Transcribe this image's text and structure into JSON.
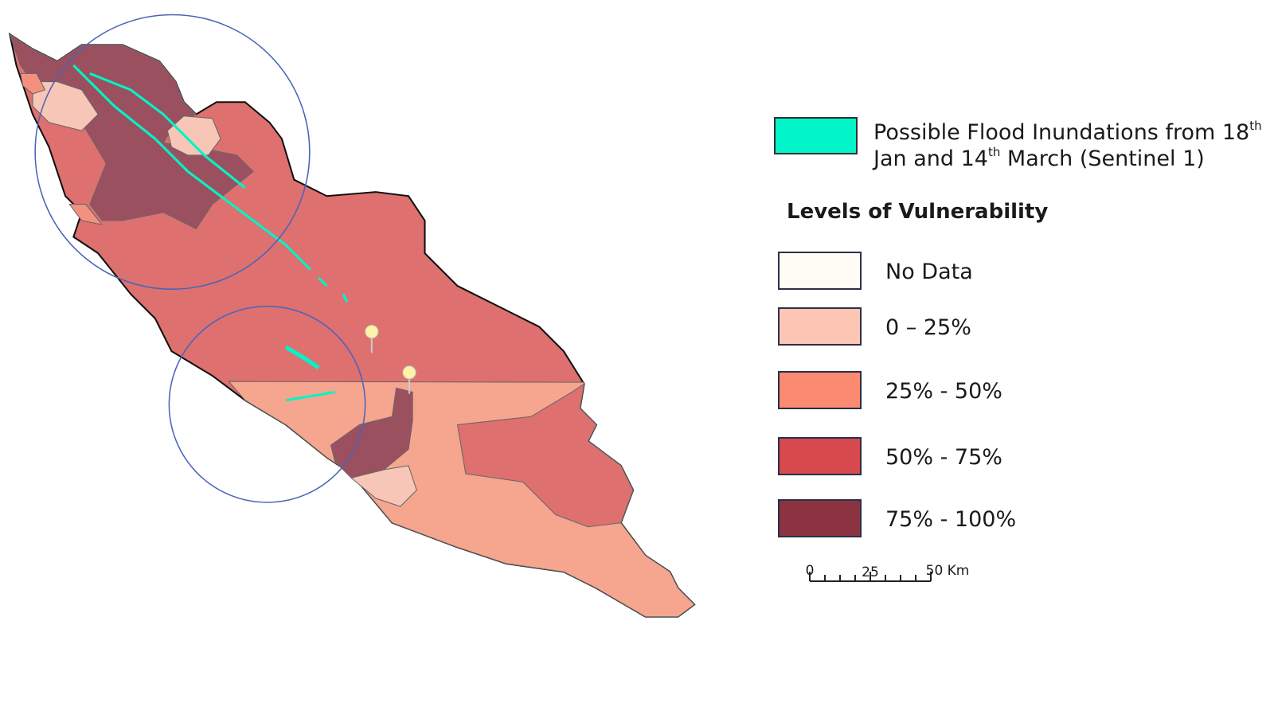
{
  "legend": {
    "flood": {
      "line1": "Possible Flood Inundations from 18",
      "sup1": "th",
      "line2": "Jan and 14",
      "sup2": "th",
      "line3": " March (Sentinel 1)",
      "color": "#00f5c8"
    },
    "title": "Levels of Vulnerability",
    "levels": [
      {
        "label": "No Data",
        "color": "#fffbf5"
      },
      {
        "label": "0 – 25%",
        "color": "#fcc5b4"
      },
      {
        "label": "25% - 50%",
        "color": "#fa8a70"
      },
      {
        "label": "50% - 75%",
        "color": "#d64a4e"
      },
      {
        "label": "75% - 100%",
        "color": "#8b3340"
      }
    ]
  },
  "scale_bar": {
    "labels": [
      "0",
      "25",
      "50 Km"
    ]
  }
}
